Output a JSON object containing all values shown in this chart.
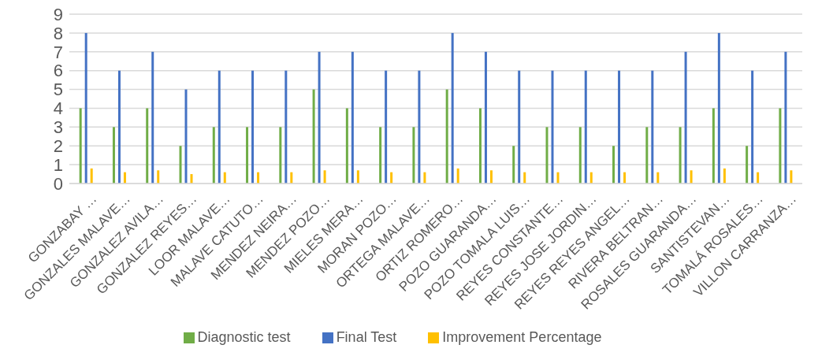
{
  "chart_data": {
    "type": "bar",
    "categories": [
      "GONZABAY …",
      "GONZALES MALAVE…",
      "GONZALEZ AVILA…",
      "GONZALEZ REYES…",
      "LOOR MALAVE…",
      "MALAVE CATUTO…",
      "MENDEZ NEIRA…",
      "MENDEZ POZO…",
      "MIELES MERA…",
      "MORAN POZO…",
      "ORTEGA MALAVE…",
      "ORTIZ ROMERO…",
      "POZO GUARANDA…",
      "POZO TOMALA LUIS…",
      "REYES CONSTANTE…",
      "REYES JOSE JORDIN…",
      "REYES REYES ANGEL…",
      "RIVERA BELTRAN…",
      "ROSALES GUARANDA…",
      "SANTISTEVAN…",
      "TOMALÁ ROSALES…",
      "VILLON CARRANZA…"
    ],
    "series": [
      {
        "name": "Diagnostic test",
        "color": "#70ad47",
        "values": [
          4,
          3,
          4,
          2,
          3,
          3,
          3,
          5,
          4,
          3,
          3,
          5,
          4,
          2,
          3,
          3,
          2,
          3,
          3,
          4,
          2,
          4
        ]
      },
      {
        "name": "Final Test",
        "color": "#4472c4",
        "values": [
          8,
          6,
          7,
          5,
          6,
          6,
          6,
          7,
          7,
          6,
          6,
          8,
          7,
          6,
          6,
          6,
          6,
          6,
          7,
          8,
          6,
          7
        ]
      },
      {
        "name": "Improvement Percentage",
        "color": "#ffc000",
        "values": [
          0.8,
          0.6,
          0.7,
          0.5,
          0.6,
          0.6,
          0.6,
          0.7,
          0.7,
          0.6,
          0.6,
          0.8,
          0.7,
          0.6,
          0.6,
          0.6,
          0.6,
          0.6,
          0.7,
          0.8,
          0.6,
          0.7
        ]
      }
    ],
    "ylim": [
      0,
      9
    ],
    "yticks": [
      0,
      1,
      2,
      3,
      4,
      5,
      6,
      7,
      8,
      9
    ],
    "grid": "y",
    "legend": "bottom"
  }
}
